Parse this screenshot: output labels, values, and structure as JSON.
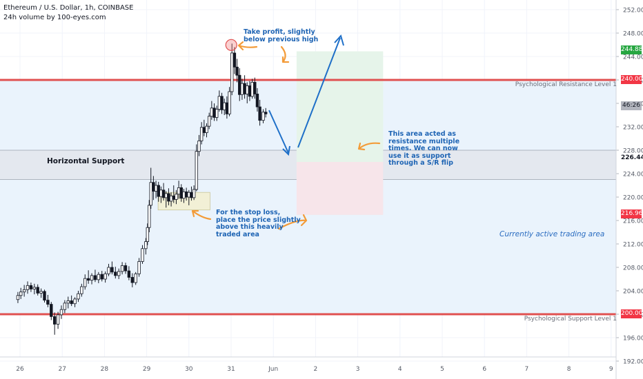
{
  "header": {
    "title": "Ethereum / U.S. Dollar, 1h, COINBASE",
    "subtitle": "24h volume by 100-eyes.com"
  },
  "chart_data": {
    "type": "candlestick",
    "symbol": "Ethereum / U.S. Dollar",
    "timeframe": "1h",
    "exchange": "COINBASE",
    "y_axis": {
      "ticks": [
        "252.00",
        "248.00",
        "244.00",
        "240.00",
        "236.00",
        "232.00",
        "228.00",
        "224.00",
        "220.00",
        "216.00",
        "212.00",
        "208.00",
        "204.00",
        "200.00",
        "196.00",
        "192.00"
      ],
      "range": [
        192,
        253
      ]
    },
    "x_axis": {
      "ticks": [
        "26",
        "27",
        "28",
        "29",
        "30",
        "31",
        "Jun",
        "2",
        "3",
        "4",
        "5",
        "6",
        "7",
        "8",
        "9"
      ]
    },
    "price_labels": {
      "target": "244.88",
      "resistance": "240.00",
      "countdown": "46:26",
      "support_zone_mid": "226.44",
      "stop": "216.96",
      "support": "200.00"
    },
    "levels": [
      {
        "label": "Psychological Resistance Level 1",
        "price": 240.0,
        "color": "#e05050"
      },
      {
        "label": "Psychological Support Level 1",
        "price": 200.0,
        "color": "#e05050"
      }
    ],
    "support_zone": {
      "label": "Horizontal Support",
      "low": 223.0,
      "high": 228.0
    },
    "trade_setup": {
      "entry": 226.0,
      "target": 244.88,
      "stop": 216.96
    },
    "candles": [
      {
        "day": 25.95,
        "o": 202.5,
        "h": 203.8,
        "l": 201.9,
        "c": 203.2
      },
      {
        "day": 26.02,
        "o": 203.2,
        "h": 204.5,
        "l": 202.6,
        "c": 203.8
      },
      {
        "day": 26.1,
        "o": 203.8,
        "h": 205.0,
        "l": 203.0,
        "c": 204.2
      },
      {
        "day": 26.18,
        "o": 204.2,
        "h": 205.6,
        "l": 203.5,
        "c": 204.9
      },
      {
        "day": 26.26,
        "o": 204.9,
        "h": 205.4,
        "l": 203.8,
        "c": 204.3
      },
      {
        "day": 26.34,
        "o": 204.3,
        "h": 205.2,
        "l": 203.4,
        "c": 204.6
      },
      {
        "day": 26.42,
        "o": 204.6,
        "h": 205.1,
        "l": 203.2,
        "c": 203.6
      },
      {
        "day": 26.5,
        "o": 203.6,
        "h": 204.4,
        "l": 202.8,
        "c": 203.9
      },
      {
        "day": 26.58,
        "o": 203.9,
        "h": 204.2,
        "l": 202.0,
        "c": 202.4
      },
      {
        "day": 26.66,
        "o": 202.4,
        "h": 203.3,
        "l": 201.2,
        "c": 201.7
      },
      {
        "day": 26.74,
        "o": 201.7,
        "h": 202.1,
        "l": 199.0,
        "c": 199.6
      },
      {
        "day": 26.82,
        "o": 199.6,
        "h": 200.3,
        "l": 196.5,
        "c": 198.3
      },
      {
        "day": 26.9,
        "o": 198.3,
        "h": 200.4,
        "l": 197.5,
        "c": 199.9
      },
      {
        "day": 26.98,
        "o": 199.9,
        "h": 201.5,
        "l": 199.2,
        "c": 200.8
      },
      {
        "day": 27.06,
        "o": 200.8,
        "h": 202.4,
        "l": 200.2,
        "c": 201.9
      },
      {
        "day": 27.14,
        "o": 201.9,
        "h": 203.0,
        "l": 201.0,
        "c": 202.3
      },
      {
        "day": 27.22,
        "o": 202.3,
        "h": 203.2,
        "l": 201.4,
        "c": 201.8
      },
      {
        "day": 27.3,
        "o": 201.8,
        "h": 202.9,
        "l": 201.2,
        "c": 202.6
      },
      {
        "day": 27.38,
        "o": 202.6,
        "h": 204.0,
        "l": 202.1,
        "c": 203.5
      },
      {
        "day": 27.46,
        "o": 203.5,
        "h": 205.2,
        "l": 203.0,
        "c": 204.7
      },
      {
        "day": 27.54,
        "o": 204.7,
        "h": 206.8,
        "l": 204.2,
        "c": 206.1
      },
      {
        "day": 27.62,
        "o": 206.1,
        "h": 207.5,
        "l": 205.2,
        "c": 205.8
      },
      {
        "day": 27.7,
        "o": 205.8,
        "h": 207.0,
        "l": 205.1,
        "c": 206.6
      },
      {
        "day": 27.78,
        "o": 206.6,
        "h": 207.6,
        "l": 205.5,
        "c": 205.9
      },
      {
        "day": 27.86,
        "o": 205.9,
        "h": 207.2,
        "l": 205.3,
        "c": 206.8
      },
      {
        "day": 27.94,
        "o": 206.8,
        "h": 207.4,
        "l": 205.6,
        "c": 206.0
      },
      {
        "day": 28.02,
        "o": 206.0,
        "h": 207.3,
        "l": 205.4,
        "c": 206.9
      },
      {
        "day": 28.1,
        "o": 206.9,
        "h": 208.6,
        "l": 206.5,
        "c": 208.0
      },
      {
        "day": 28.18,
        "o": 208.0,
        "h": 209.0,
        "l": 206.8,
        "c": 207.2
      },
      {
        "day": 28.26,
        "o": 207.2,
        "h": 208.1,
        "l": 206.1,
        "c": 206.6
      },
      {
        "day": 28.34,
        "o": 206.6,
        "h": 207.8,
        "l": 206.0,
        "c": 207.3
      },
      {
        "day": 28.42,
        "o": 207.3,
        "h": 208.9,
        "l": 206.8,
        "c": 208.3
      },
      {
        "day": 28.5,
        "o": 208.3,
        "h": 208.8,
        "l": 206.9,
        "c": 207.4
      },
      {
        "day": 28.58,
        "o": 207.4,
        "h": 208.2,
        "l": 205.8,
        "c": 206.3
      },
      {
        "day": 28.66,
        "o": 206.3,
        "h": 207.0,
        "l": 204.6,
        "c": 205.4
      },
      {
        "day": 28.74,
        "o": 205.4,
        "h": 207.2,
        "l": 205.0,
        "c": 206.9
      },
      {
        "day": 28.82,
        "o": 206.9,
        "h": 209.6,
        "l": 206.4,
        "c": 209.0
      },
      {
        "day": 28.9,
        "o": 209.0,
        "h": 211.8,
        "l": 208.6,
        "c": 211.2
      },
      {
        "day": 28.98,
        "o": 211.2,
        "h": 213.0,
        "l": 210.2,
        "c": 212.4
      },
      {
        "day": 29.02,
        "o": 212.4,
        "h": 215.5,
        "l": 211.8,
        "c": 214.8
      },
      {
        "day": 29.06,
        "o": 214.8,
        "h": 219.5,
        "l": 214.0,
        "c": 218.6
      },
      {
        "day": 29.1,
        "o": 218.6,
        "h": 225.0,
        "l": 218.0,
        "c": 222.5
      },
      {
        "day": 29.16,
        "o": 222.5,
        "h": 223.6,
        "l": 219.5,
        "c": 221.0
      },
      {
        "day": 29.22,
        "o": 221.0,
        "h": 222.8,
        "l": 219.8,
        "c": 222.0
      },
      {
        "day": 29.28,
        "o": 222.0,
        "h": 222.6,
        "l": 219.2,
        "c": 220.1
      },
      {
        "day": 29.34,
        "o": 220.1,
        "h": 221.8,
        "l": 219.0,
        "c": 221.2
      },
      {
        "day": 29.4,
        "o": 221.2,
        "h": 222.4,
        "l": 219.4,
        "c": 219.9
      },
      {
        "day": 29.46,
        "o": 219.9,
        "h": 221.0,
        "l": 218.2,
        "c": 220.6
      },
      {
        "day": 29.52,
        "o": 220.6,
        "h": 221.5,
        "l": 218.6,
        "c": 219.3
      },
      {
        "day": 29.58,
        "o": 219.3,
        "h": 220.8,
        "l": 218.4,
        "c": 220.2
      },
      {
        "day": 29.64,
        "o": 220.2,
        "h": 222.0,
        "l": 219.0,
        "c": 219.6
      },
      {
        "day": 29.7,
        "o": 219.6,
        "h": 221.2,
        "l": 218.8,
        "c": 220.5
      },
      {
        "day": 29.76,
        "o": 220.5,
        "h": 222.8,
        "l": 219.7,
        "c": 221.6
      },
      {
        "day": 29.82,
        "o": 221.6,
        "h": 222.2,
        "l": 219.2,
        "c": 219.8
      },
      {
        "day": 29.88,
        "o": 219.8,
        "h": 221.4,
        "l": 219.0,
        "c": 220.9
      },
      {
        "day": 29.94,
        "o": 220.9,
        "h": 221.6,
        "l": 219.4,
        "c": 220.0
      },
      {
        "day": 30.0,
        "o": 220.0,
        "h": 221.2,
        "l": 218.6,
        "c": 220.8
      },
      {
        "day": 30.06,
        "o": 220.8,
        "h": 221.8,
        "l": 219.4,
        "c": 219.9
      },
      {
        "day": 30.12,
        "o": 219.9,
        "h": 222.0,
        "l": 219.5,
        "c": 221.3
      },
      {
        "day": 30.18,
        "o": 221.3,
        "h": 229.0,
        "l": 221.0,
        "c": 227.8
      },
      {
        "day": 30.24,
        "o": 227.8,
        "h": 230.6,
        "l": 227.0,
        "c": 229.6
      },
      {
        "day": 30.3,
        "o": 229.6,
        "h": 232.8,
        "l": 229.0,
        "c": 231.9
      },
      {
        "day": 30.36,
        "o": 231.9,
        "h": 233.2,
        "l": 230.4,
        "c": 231.0
      },
      {
        "day": 30.42,
        "o": 231.0,
        "h": 232.6,
        "l": 230.2,
        "c": 232.1
      },
      {
        "day": 30.48,
        "o": 232.1,
        "h": 234.4,
        "l": 231.6,
        "c": 233.8
      },
      {
        "day": 30.54,
        "o": 233.8,
        "h": 236.4,
        "l": 233.2,
        "c": 235.2
      },
      {
        "day": 30.6,
        "o": 235.2,
        "h": 236.0,
        "l": 233.0,
        "c": 233.6
      },
      {
        "day": 30.66,
        "o": 233.6,
        "h": 235.6,
        "l": 233.0,
        "c": 235.0
      },
      {
        "day": 30.72,
        "o": 235.0,
        "h": 238.2,
        "l": 234.6,
        "c": 237.2
      },
      {
        "day": 30.78,
        "o": 237.2,
        "h": 237.8,
        "l": 234.2,
        "c": 234.9
      },
      {
        "day": 30.84,
        "o": 234.9,
        "h": 236.8,
        "l": 234.0,
        "c": 236.1
      },
      {
        "day": 30.9,
        "o": 236.1,
        "h": 237.2,
        "l": 233.4,
        "c": 234.2
      },
      {
        "day": 30.96,
        "o": 234.2,
        "h": 238.8,
        "l": 233.8,
        "c": 238.0
      },
      {
        "day": 31.02,
        "o": 238.0,
        "h": 246.2,
        "l": 237.4,
        "c": 244.6
      },
      {
        "day": 31.08,
        "o": 244.6,
        "h": 245.6,
        "l": 241.0,
        "c": 242.2
      },
      {
        "day": 31.14,
        "o": 242.2,
        "h": 243.6,
        "l": 239.6,
        "c": 240.8
      },
      {
        "day": 31.2,
        "o": 240.8,
        "h": 242.0,
        "l": 236.4,
        "c": 237.5
      },
      {
        "day": 31.26,
        "o": 237.5,
        "h": 240.2,
        "l": 236.6,
        "c": 239.4
      },
      {
        "day": 31.32,
        "o": 239.4,
        "h": 240.8,
        "l": 236.8,
        "c": 237.6
      },
      {
        "day": 31.38,
        "o": 237.6,
        "h": 239.6,
        "l": 236.0,
        "c": 239.0
      },
      {
        "day": 31.44,
        "o": 239.0,
        "h": 239.8,
        "l": 236.4,
        "c": 237.2
      },
      {
        "day": 31.5,
        "o": 237.2,
        "h": 240.2,
        "l": 236.8,
        "c": 239.6
      },
      {
        "day": 31.56,
        "o": 239.6,
        "h": 240.4,
        "l": 236.8,
        "c": 237.6
      },
      {
        "day": 31.62,
        "o": 237.6,
        "h": 238.6,
        "l": 234.6,
        "c": 235.4
      },
      {
        "day": 31.68,
        "o": 235.4,
        "h": 236.6,
        "l": 232.2,
        "c": 233.1
      },
      {
        "day": 31.76,
        "o": 233.1,
        "h": 235.0,
        "l": 232.6,
        "c": 234.5
      },
      {
        "day": 31.82,
        "o": 234.5,
        "h": 235.2,
        "l": 233.6,
        "c": 234.2
      }
    ]
  },
  "annotations": {
    "take_profit": "Take profit, slightly\nbelow previous high",
    "resistance_flip": "This area acted as\nresistance multiple\ntimes. We can now\nuse it as support\nthrough a S/R flip",
    "stop_loss": "For the stop loss,\nplace the price slightly\nabove this heavily\ntraded area",
    "active_area": "Currently active trading area"
  },
  "colors": {
    "level_line": "#e05050",
    "zone_fill": "#eaf3fc",
    "support_band": "#e4e8ef",
    "profit_box": "#e6f4ea",
    "loss_box": "#f7e5ea",
    "arrow_blue": "#1e6fc8",
    "arrow_orange": "#f39b38",
    "annotation_text": "#1e64b4",
    "target_badge": "#26a641",
    "stop_badge": "#f23645"
  }
}
